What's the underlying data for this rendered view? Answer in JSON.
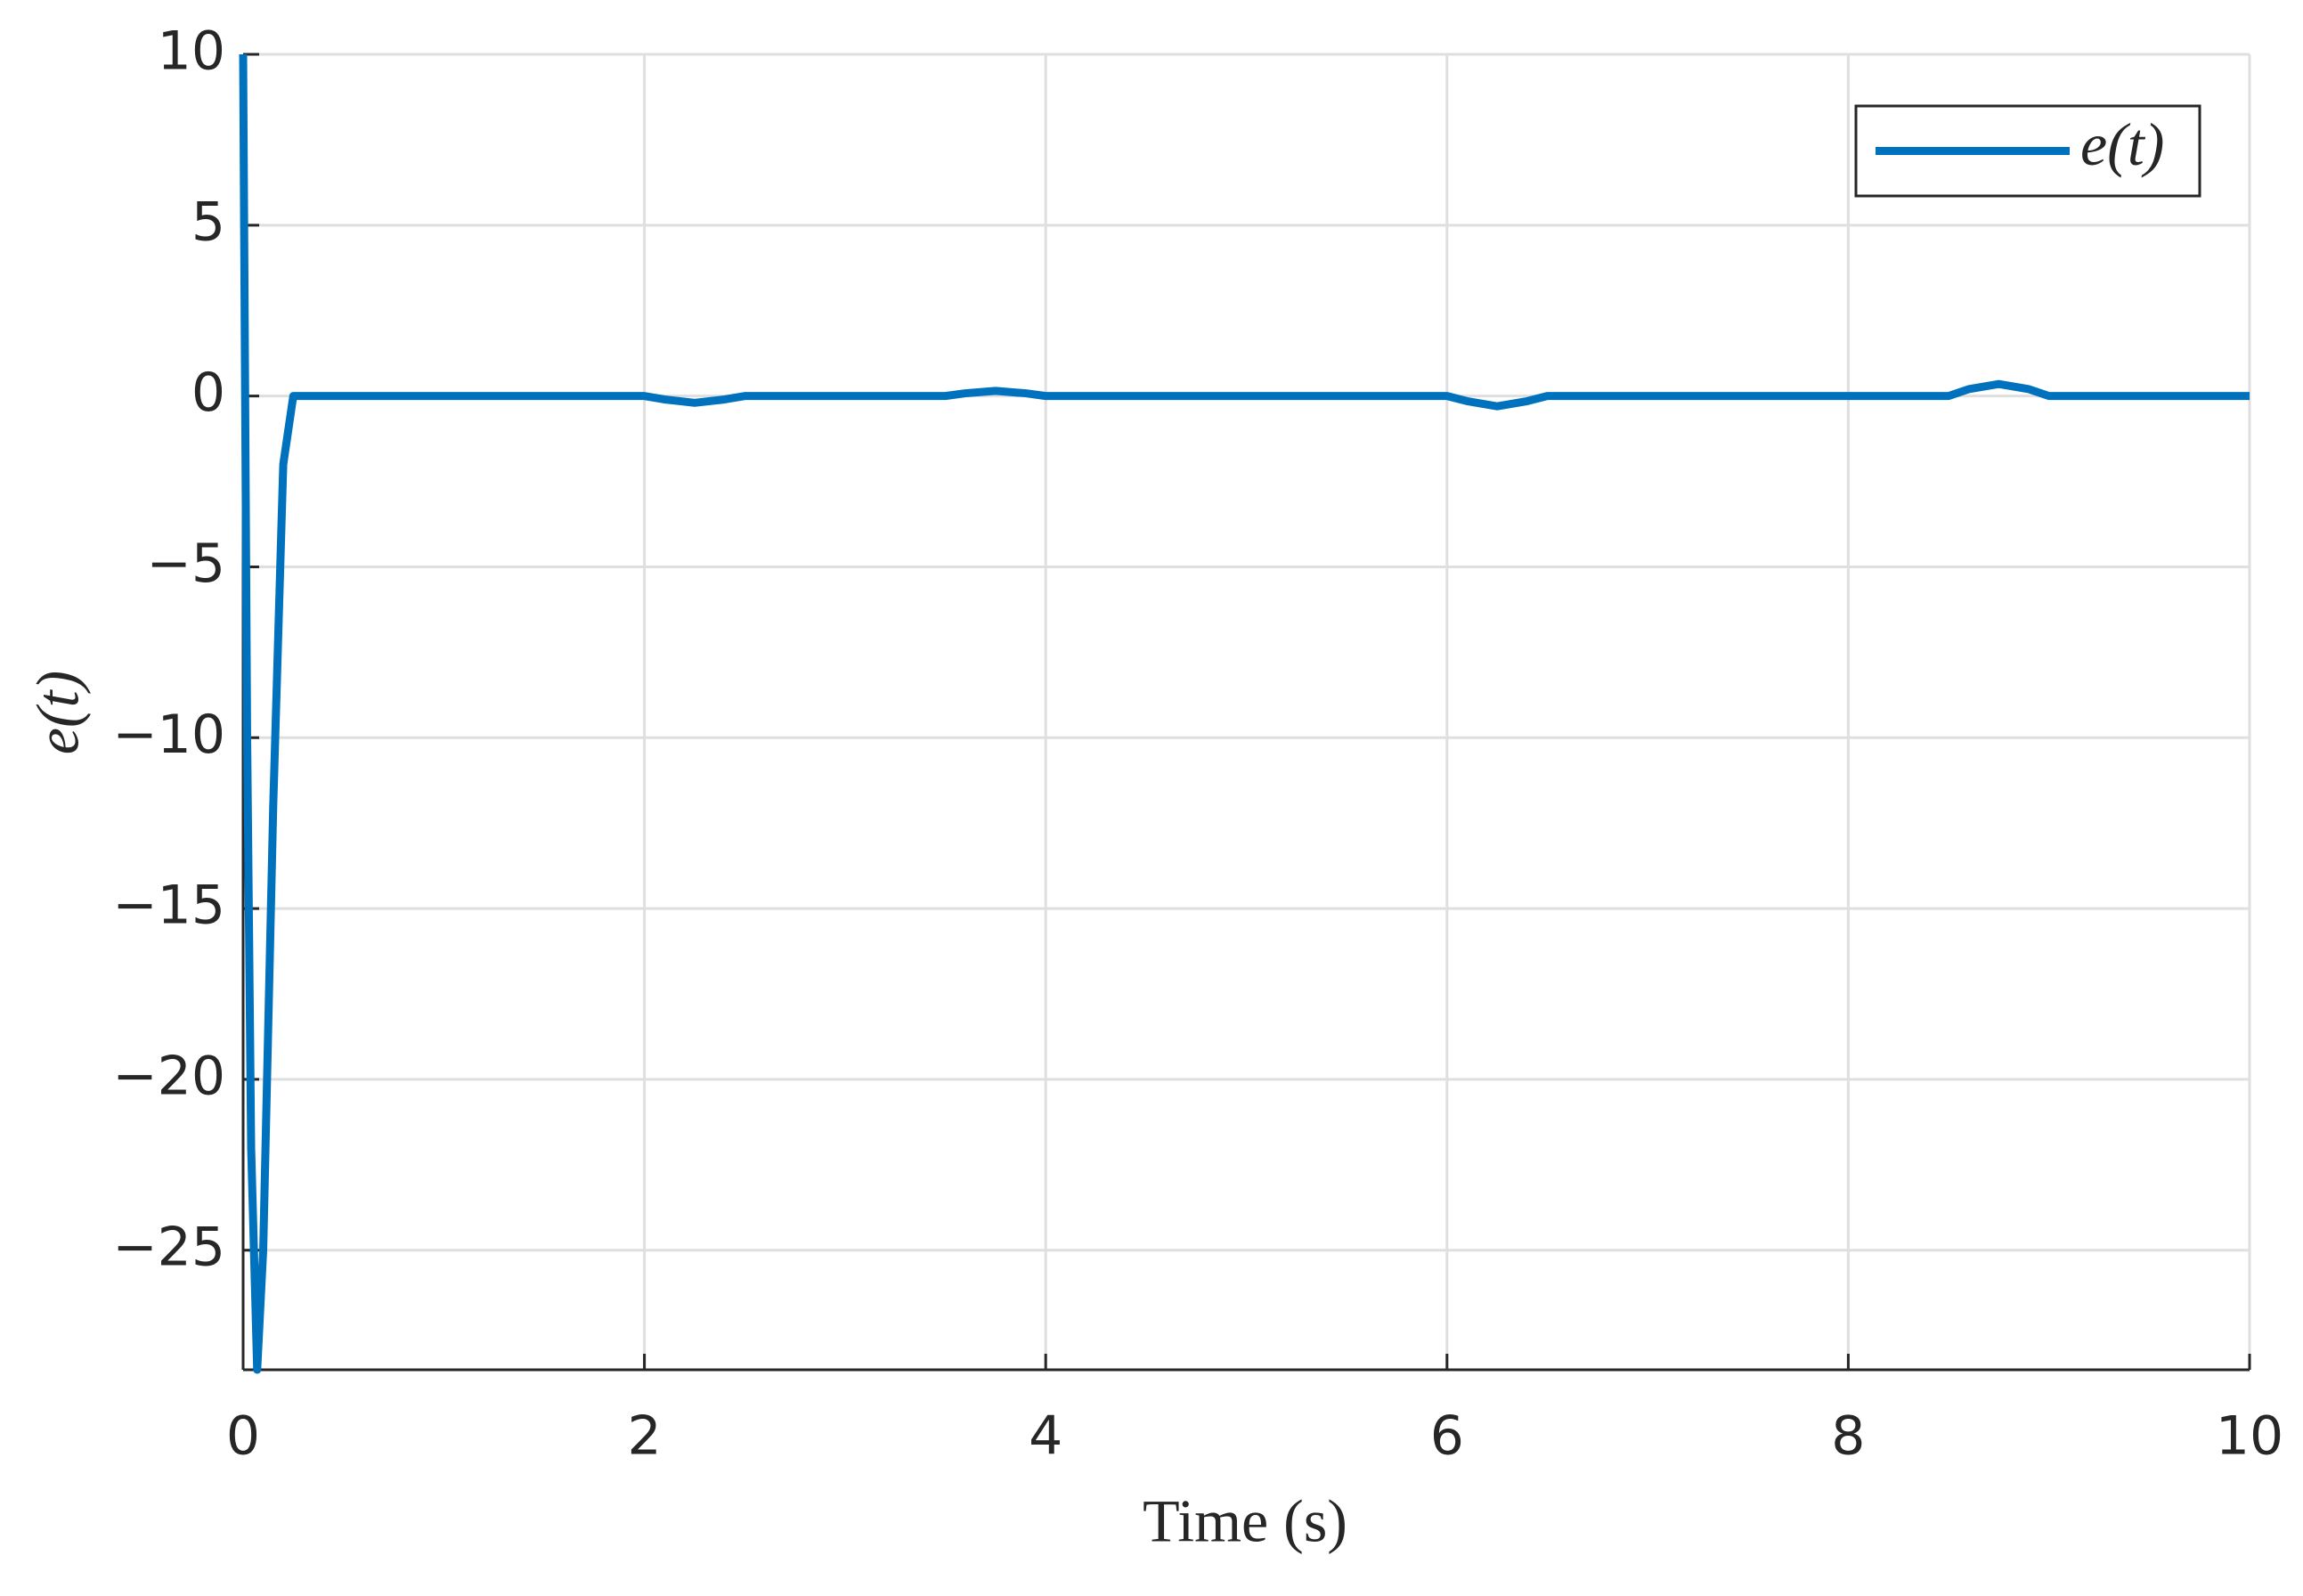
{
  "chart_data": {
    "type": "line",
    "x_label": "Time (s)",
    "y_label": "e(t)",
    "x": [
      0,
      0.02,
      0.04,
      0.07,
      0.1,
      0.15,
      0.2,
      0.25,
      2,
      2.1,
      2.25,
      2.4,
      2.5,
      3.5,
      3.6,
      3.75,
      3.9,
      4,
      6,
      6.1,
      6.25,
      6.4,
      6.5,
      8.5,
      8.6,
      8.75,
      8.9,
      9,
      10
    ],
    "series": [
      {
        "name": "e(t)",
        "color": "#0072bd",
        "values": [
          10,
          -10,
          -22,
          -28.5,
          -25,
          -12,
          -2,
          0,
          0,
          -0.1,
          -0.2,
          -0.1,
          0,
          0,
          0.08,
          0.15,
          0.08,
          0,
          0,
          -0.15,
          -0.3,
          -0.15,
          0,
          0,
          0.2,
          0.35,
          0.2,
          0,
          0
        ]
      }
    ],
    "xlim": [
      0,
      10
    ],
    "ylim": [
      -28.5,
      10
    ],
    "xticks": [
      0,
      2,
      4,
      6,
      8,
      10
    ],
    "yticks": [
      {
        "value": -25,
        "label": "−25"
      },
      {
        "value": -20,
        "label": "−20"
      },
      {
        "value": -15,
        "label": "−15"
      },
      {
        "value": -10,
        "label": "−10"
      },
      {
        "value": -5,
        "label": "−5"
      },
      0,
      5,
      10
    ],
    "grid": true,
    "legend": "upper right"
  }
}
